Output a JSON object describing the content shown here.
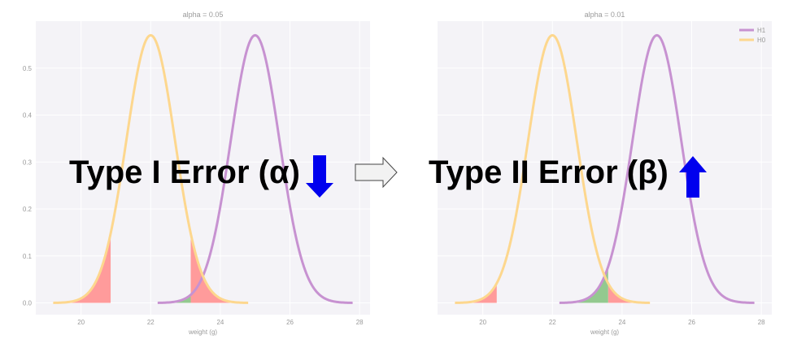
{
  "colors": {
    "panel_bg": "#f4f3f7",
    "grid": "#ffffff",
    "h1": "#c792d1",
    "h0": "#fdd78e",
    "fill_alpha": "#ff9b9b",
    "fill_beta": "#93c98f",
    "tick_text": "#9a9a9a",
    "arrow": "#0000ee"
  },
  "labels": {
    "type1": "Type I Error (α)",
    "type2": "Type II Error (β)"
  },
  "chart_data": [
    {
      "type": "line",
      "title": "alpha = 0.05",
      "xlabel": "weight (g)",
      "ylabel": "",
      "xlim": [
        18.7,
        28.3
      ],
      "ylim": [
        -0.025,
        0.6
      ],
      "xticks": [
        "20",
        "22",
        "24",
        "26",
        "28"
      ],
      "yticks": [
        "0.0",
        "0.1",
        "0.2",
        "0.3",
        "0.4",
        "0.5"
      ],
      "grid": true,
      "series": [
        {
          "name": "H1",
          "mean": 25,
          "sd": 0.7,
          "x_range": [
            22.2,
            27.8
          ]
        },
        {
          "name": "H0",
          "mean": 22,
          "sd": 0.7,
          "x_range": [
            19.2,
            24.8
          ]
        }
      ],
      "shaded": [
        {
          "kind": "alpha",
          "curve": "H0",
          "from": 19.2,
          "to": 20.85
        },
        {
          "kind": "alpha",
          "curve": "H0",
          "from": 23.15,
          "to": 24.8
        },
        {
          "kind": "beta",
          "curve": "H1",
          "from": 22.2,
          "to": 23.15
        }
      ],
      "arrow": "down"
    },
    {
      "type": "line",
      "title": "alpha = 0.01",
      "xlabel": "weight (g)",
      "ylabel": "",
      "xlim": [
        18.7,
        28.3
      ],
      "ylim": [
        -0.025,
        0.6
      ],
      "xticks": [
        "20",
        "22",
        "24",
        "26",
        "28"
      ],
      "yticks": [],
      "grid": true,
      "legend": "top-right",
      "legend_entries": [
        "H1",
        "H0"
      ],
      "series": [
        {
          "name": "H1",
          "mean": 25,
          "sd": 0.7,
          "x_range": [
            22.2,
            27.8
          ]
        },
        {
          "name": "H0",
          "mean": 22,
          "sd": 0.7,
          "x_range": [
            19.2,
            24.8
          ]
        }
      ],
      "shaded": [
        {
          "kind": "alpha",
          "curve": "H0",
          "from": 19.2,
          "to": 20.4
        },
        {
          "kind": "alpha",
          "curve": "H0",
          "from": 23.6,
          "to": 24.8
        },
        {
          "kind": "beta",
          "curve": "H1",
          "from": 22.2,
          "to": 23.6
        }
      ],
      "arrow": "up"
    }
  ]
}
